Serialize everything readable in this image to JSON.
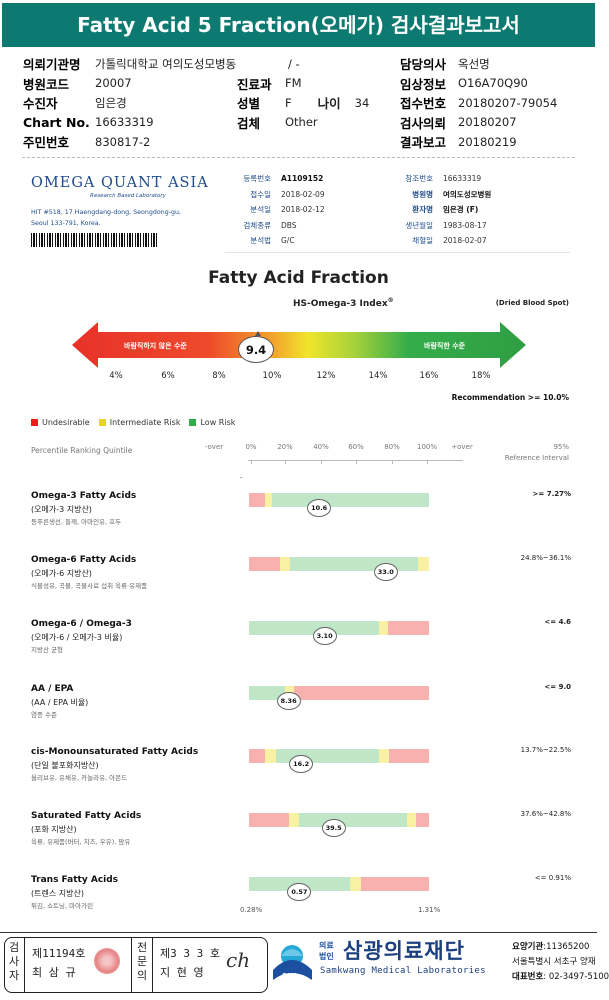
{
  "header": {
    "title": "Fatty Acid 5 Fraction(오메가) 검사결과보고서"
  },
  "patient_meta": {
    "col1": [
      {
        "label": "의뢰기관명",
        "value": "가톨릭대학교 여의도성모병동"
      },
      {
        "label": "병원코드",
        "value": "20007"
      },
      {
        "label": "수진자",
        "value": "임은경"
      },
      {
        "label": "Chart No.",
        "value": "16633319"
      },
      {
        "label": "주민번호",
        "value": "830817-2"
      }
    ],
    "col1_extra": "/ -",
    "col2": [
      {
        "label": "진료과",
        "value": "FM"
      },
      {
        "label": "성별",
        "value": "F"
      },
      {
        "label": "검체",
        "value": "Other"
      }
    ],
    "age_label": "나이",
    "age_value": "34",
    "col3": [
      {
        "label": "담당의사",
        "value": "옥선명"
      },
      {
        "label": "임상정보",
        "value": "O16A70Q90"
      },
      {
        "label": "접수번호",
        "value": "20180207-79054"
      },
      {
        "label": "검사의뢰",
        "value": "20180207"
      },
      {
        "label": "결과보고",
        "value": "20180219"
      }
    ]
  },
  "lab": {
    "logo": "OMEGA QUANT ASIA",
    "logo_sub": "Research Based Laboratory",
    "address_line1": "HIT #518, 17 Haengdang-dong, Seongdong-gu,",
    "address_line2": "Seoul 133-791, Korea."
  },
  "report_info": {
    "left": [
      {
        "label": "등록번호",
        "value": "A1109152",
        "bold": true
      },
      {
        "label": "접수일",
        "value": "2018-02-09"
      },
      {
        "label": "분석일",
        "value": "2018-02-12"
      },
      {
        "label": "검체종류",
        "value": "DBS"
      },
      {
        "label": "분석법",
        "value": "G/C"
      }
    ],
    "right": [
      {
        "label": "참조번호",
        "value": "16633319"
      },
      {
        "label": "병원명",
        "value": "여의도성모병원",
        "bold": true
      },
      {
        "label": "환자명",
        "value": "임은경 (F)",
        "bold": true
      },
      {
        "label": "생년월일",
        "value": "1983-08-17"
      },
      {
        "label": "채혈일",
        "value": "2018-02-07"
      }
    ]
  },
  "fatty_acid_fraction": {
    "title": "Fatty Acid Fraction",
    "index_title": "HS-Omega-3 Index",
    "index_sup": "®",
    "specimen": "(Dried Blood Spot)",
    "left_label": "바람직하지 않은 수준",
    "right_label": "바람직한 수준",
    "value": "9.4",
    "value_num": 9.4,
    "ticks": [
      "4%",
      "6%",
      "8%",
      "10%",
      "12%",
      "14%",
      "16%",
      "18%"
    ],
    "recommendation": "Recommendation  >= 10.0%",
    "colors": {
      "red": "#e8312a",
      "yellow": "#f0e52a",
      "green": "#35ad4a"
    }
  },
  "legend": [
    {
      "label": "Undesirable",
      "color": "#e8201a"
    },
    {
      "label": "Intermediate Risk",
      "color": "#e6d71b"
    },
    {
      "label": "Low Risk",
      "color": "#2fae45"
    }
  ],
  "percentile": {
    "heading": "Percentile Ranking Quintile",
    "labels": [
      "-over",
      "0%",
      "20%",
      "40%",
      "60%",
      "80%",
      "100%",
      "+over"
    ],
    "ref_line1": "95%",
    "ref_line2": "Reference Interval",
    "dash": "-",
    "min_label": "0.28%",
    "max_label": "1.31%"
  },
  "fatty_acids": [
    {
      "name": "Omega-3 Fatty Acids",
      "kr": "(오메가-3 지방산)",
      "desc": "등푸른생선, 들깨, 아마인유, 호두",
      "ref": ">= 7.27%",
      "ref_bold": true,
      "value": "10.6",
      "pos": 0.39,
      "segments": [
        [
          "red",
          0.09
        ],
        [
          "yel",
          0.04
        ],
        [
          "grn",
          0.87
        ]
      ]
    },
    {
      "name": "Omega-6 Fatty Acids",
      "kr": "(오메가-6 지방산)",
      "desc": "식물성유, 곡물, 곡물사료 섭취 육류·유제품",
      "ref": "24.8%~36.1%",
      "ref_bold": false,
      "value": "33.0",
      "pos": 0.76,
      "segments": [
        [
          "red",
          0.17
        ],
        [
          "yel",
          0.06
        ],
        [
          "grn",
          0.71
        ],
        [
          "yel",
          0.06
        ]
      ]
    },
    {
      "name": "Omega-6 / Omega-3",
      "kr": "(오메가-6 / 오메가-3 비율)",
      "desc": "지방산 균형",
      "ref": "<= 4.6",
      "ref_bold": true,
      "value": "3.10",
      "pos": 0.42,
      "segments": [
        [
          "grn",
          0.72
        ],
        [
          "yel",
          0.05
        ],
        [
          "red",
          0.23
        ]
      ]
    },
    {
      "name": "AA / EPA",
      "kr": "(AA / EPA 비율)",
      "desc": "염증 수준",
      "ref": "<= 9.0",
      "ref_bold": true,
      "value": "8.36",
      "pos": 0.22,
      "segments": [
        [
          "grn",
          0.2
        ],
        [
          "yel",
          0.05
        ],
        [
          "red",
          0.75
        ]
      ]
    },
    {
      "name": "cis-Monounsaturated Fatty Acids",
      "kr": "(단일 불포화지방산)",
      "desc": "올리브유, 유채유, 카놀라유, 아몬드",
      "ref": "13.7%~22.5%",
      "ref_bold": false,
      "value": "16.2",
      "pos": 0.29,
      "segments": [
        [
          "red",
          0.09
        ],
        [
          "yel",
          0.06
        ],
        [
          "grn",
          0.57
        ],
        [
          "yel",
          0.06
        ],
        [
          "red",
          0.22
        ]
      ]
    },
    {
      "name": "Saturated Fatty Acids",
      "kr": "(포화 지방산)",
      "desc": "육류, 유제품(버터, 치즈, 우유), 팜유",
      "ref": "37.6%~42.8%",
      "ref_bold": false,
      "value": "39.5",
      "pos": 0.47,
      "segments": [
        [
          "red",
          0.22
        ],
        [
          "yel",
          0.06
        ],
        [
          "grn",
          0.6
        ],
        [
          "yel",
          0.05
        ],
        [
          "red",
          0.07
        ]
      ]
    },
    {
      "name": "Trans Fatty Acids",
      "kr": "(트렌스 지방산)",
      "desc": "튀김, 쇼트닝, 마아가린",
      "ref": "<= 0.91%",
      "ref_bold": false,
      "value": "0.57",
      "pos": 0.28,
      "segments": [
        [
          "grn",
          0.56
        ],
        [
          "yel",
          0.06
        ],
        [
          "red",
          0.38
        ]
      ]
    }
  ],
  "footer": {
    "inspector_label": "검사자",
    "inspector_no": "제11194호",
    "inspector_name": "최 삼 규",
    "specialist_label": "전문의",
    "specialist_no": "제3 3 3 호",
    "specialist_name": "지 현 영",
    "signature": "ch",
    "org_type_1": "의료",
    "org_type_2": "법인",
    "org_name": "삼광의료재단",
    "org_en": "Samkwang Medical Laboratories",
    "logo_text": "SML",
    "code_label": "요양기관",
    "code_value": ":11365200",
    "address": "서울특별시 서초구 양재",
    "phone_label": "대표번호",
    "phone_value": ": 02-3497-5100"
  }
}
